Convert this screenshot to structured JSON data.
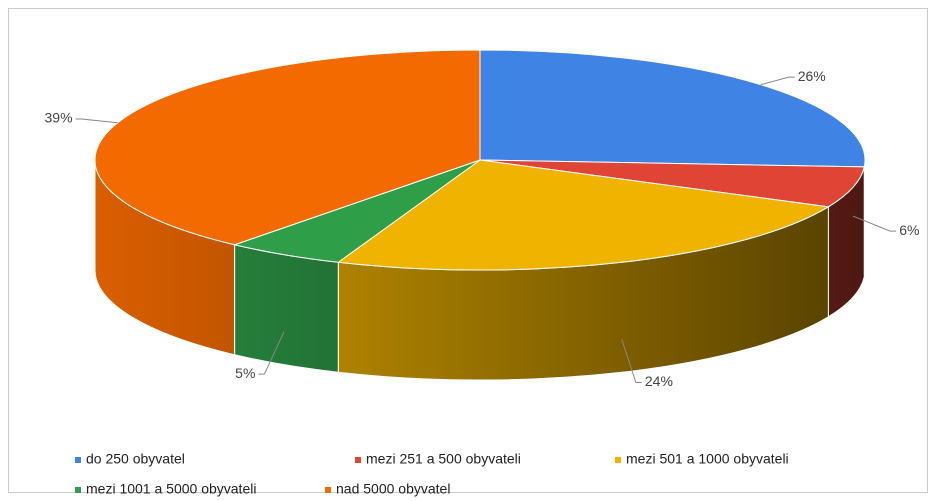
{
  "chart_data": {
    "type": "pie",
    "categories": [
      "do 250 obyvatel",
      "mezi 251 a 500 obyvateli",
      "mezi 501 a 1000 obyvateli",
      "mezi 1001 a 5000 obyvateli",
      "nad 5000 obyvatel"
    ],
    "values": [
      26,
      6,
      24,
      5,
      39
    ],
    "value_labels": [
      "26%",
      "6%",
      "24%",
      "5%",
      "39%"
    ],
    "colors": [
      "#3f83e4",
      "#e04434",
      "#f0b400",
      "#2f9e49",
      "#f26a00"
    ],
    "legend": "bottom"
  }
}
